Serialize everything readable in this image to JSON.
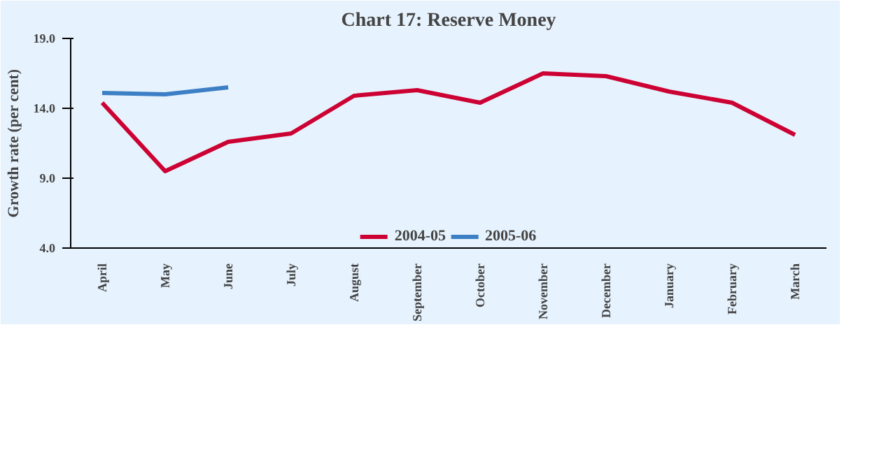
{
  "chart_data": {
    "type": "line",
    "title": "Chart 17: Reserve Money",
    "ylabel": "Growth rate (per cent)",
    "categories": [
      "April",
      "May",
      "June",
      "July",
      "August",
      "September",
      "October",
      "November",
      "December",
      "January",
      "February",
      "March"
    ],
    "series": [
      {
        "name": "2004-05",
        "color": "#cc0033",
        "values": [
          14.4,
          9.5,
          11.6,
          12.2,
          14.9,
          15.3,
          14.4,
          16.5,
          16.3,
          15.2,
          14.4,
          12.1
        ]
      },
      {
        "name": "2005-06",
        "color": "#3d7fc4",
        "values": [
          15.1,
          15.0,
          15.5,
          null,
          null,
          null,
          null,
          null,
          null,
          null,
          null,
          null
        ]
      }
    ],
    "ylim": [
      4,
      19
    ],
    "yticks": [
      {
        "value": 4,
        "label": "4.0"
      },
      {
        "value": 9,
        "label": "9.0"
      },
      {
        "value": 14,
        "label": "14.0"
      },
      {
        "value": 19,
        "label": "19.0"
      }
    ],
    "grid": false,
    "legend": "bottom",
    "marker": "none",
    "line_style": "solid"
  }
}
